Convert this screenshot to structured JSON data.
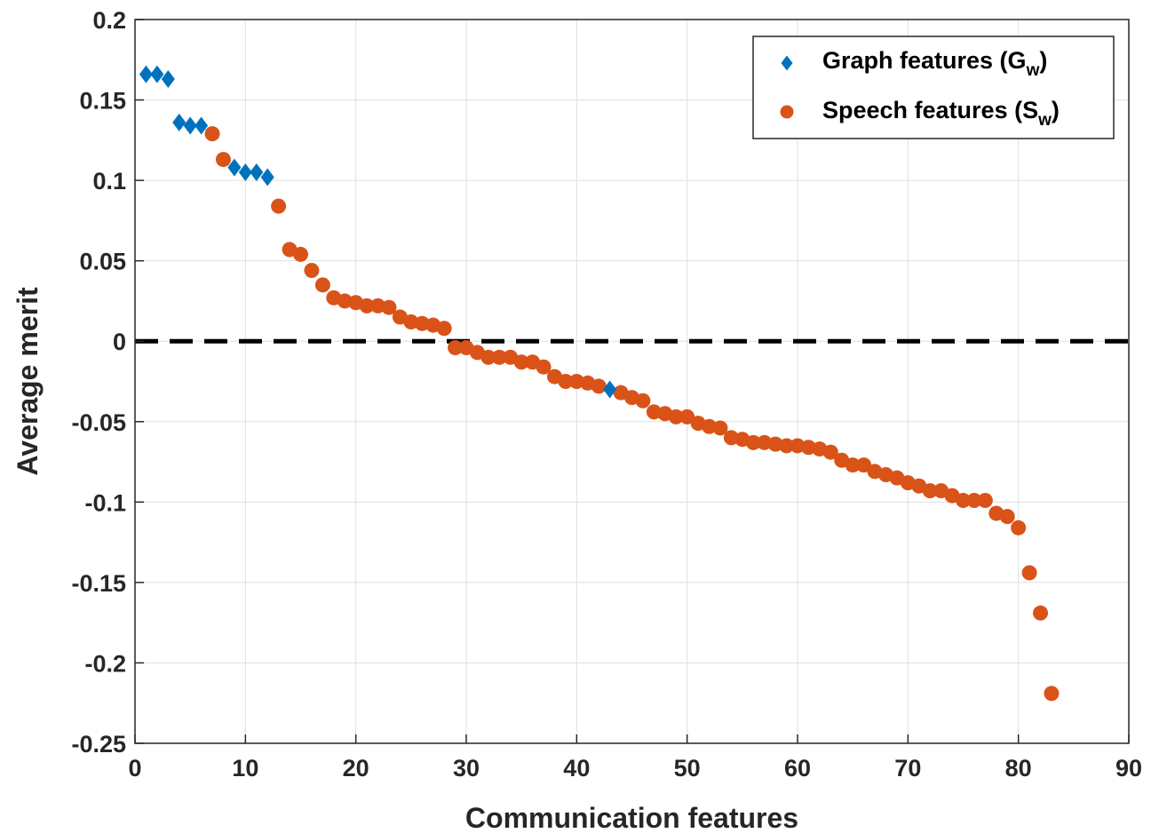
{
  "chart_data": {
    "type": "scatter",
    "title": "",
    "xlabel": "Communication features",
    "ylabel": "Average merit",
    "xlim": [
      0,
      90
    ],
    "ylim": [
      -0.25,
      0.2
    ],
    "x_ticks": [
      "0",
      "10",
      "20",
      "30",
      "40",
      "50",
      "60",
      "70",
      "80",
      "90"
    ],
    "y_ticks": [
      "0.2",
      "0.15",
      "0.1",
      "0.05",
      "0",
      "-0.05",
      "-0.1",
      "-0.15",
      "-0.2",
      "-0.25"
    ],
    "grid": true,
    "zero_line": true,
    "legend_position": "top-right",
    "series": [
      {
        "name_main": "Graph features (G",
        "name_sub": "w",
        "name_end": ")",
        "marker": "diamond",
        "color": "#0072BD",
        "points": [
          [
            1,
            0.166
          ],
          [
            2,
            0.166
          ],
          [
            3,
            0.163
          ],
          [
            4,
            0.136
          ],
          [
            5,
            0.134
          ],
          [
            6,
            0.134
          ],
          [
            9,
            0.108
          ],
          [
            10,
            0.105
          ],
          [
            11,
            0.105
          ],
          [
            12,
            0.102
          ],
          [
            43,
            -0.03
          ]
        ]
      },
      {
        "name_main": "Speech features (S",
        "name_sub": "w",
        "name_end": ")",
        "marker": "circle",
        "color": "#D95319",
        "points": [
          [
            7,
            0.129
          ],
          [
            8,
            0.113
          ],
          [
            13,
            0.084
          ],
          [
            14,
            0.057
          ],
          [
            15,
            0.054
          ],
          [
            16,
            0.044
          ],
          [
            17,
            0.035
          ],
          [
            18,
            0.027
          ],
          [
            19,
            0.025
          ],
          [
            20,
            0.024
          ],
          [
            21,
            0.022
          ],
          [
            22,
            0.022
          ],
          [
            23,
            0.021
          ],
          [
            24,
            0.015
          ],
          [
            25,
            0.012
          ],
          [
            26,
            0.011
          ],
          [
            27,
            0.01
          ],
          [
            28,
            0.008
          ],
          [
            29,
            -0.004
          ],
          [
            30,
            -0.004
          ],
          [
            31,
            -0.007
          ],
          [
            32,
            -0.01
          ],
          [
            33,
            -0.01
          ],
          [
            34,
            -0.01
          ],
          [
            35,
            -0.013
          ],
          [
            36,
            -0.013
          ],
          [
            37,
            -0.016
          ],
          [
            38,
            -0.022
          ],
          [
            39,
            -0.025
          ],
          [
            40,
            -0.025
          ],
          [
            41,
            -0.026
          ],
          [
            42,
            -0.028
          ],
          [
            44,
            -0.032
          ],
          [
            45,
            -0.035
          ],
          [
            46,
            -0.037
          ],
          [
            47,
            -0.044
          ],
          [
            48,
            -0.045
          ],
          [
            49,
            -0.047
          ],
          [
            50,
            -0.047
          ],
          [
            51,
            -0.051
          ],
          [
            52,
            -0.053
          ],
          [
            53,
            -0.054
          ],
          [
            54,
            -0.06
          ],
          [
            55,
            -0.061
          ],
          [
            56,
            -0.063
          ],
          [
            57,
            -0.063
          ],
          [
            58,
            -0.064
          ],
          [
            59,
            -0.065
          ],
          [
            60,
            -0.065
          ],
          [
            61,
            -0.066
          ],
          [
            62,
            -0.067
          ],
          [
            63,
            -0.069
          ],
          [
            64,
            -0.074
          ],
          [
            65,
            -0.077
          ],
          [
            66,
            -0.077
          ],
          [
            67,
            -0.081
          ],
          [
            68,
            -0.083
          ],
          [
            69,
            -0.085
          ],
          [
            70,
            -0.088
          ],
          [
            71,
            -0.09
          ],
          [
            72,
            -0.093
          ],
          [
            73,
            -0.093
          ],
          [
            74,
            -0.096
          ],
          [
            75,
            -0.099
          ],
          [
            76,
            -0.099
          ],
          [
            77,
            -0.099
          ],
          [
            78,
            -0.107
          ],
          [
            79,
            -0.109
          ],
          [
            80,
            -0.116
          ],
          [
            81,
            -0.144
          ],
          [
            82,
            -0.169
          ],
          [
            83,
            -0.219
          ]
        ]
      }
    ]
  }
}
